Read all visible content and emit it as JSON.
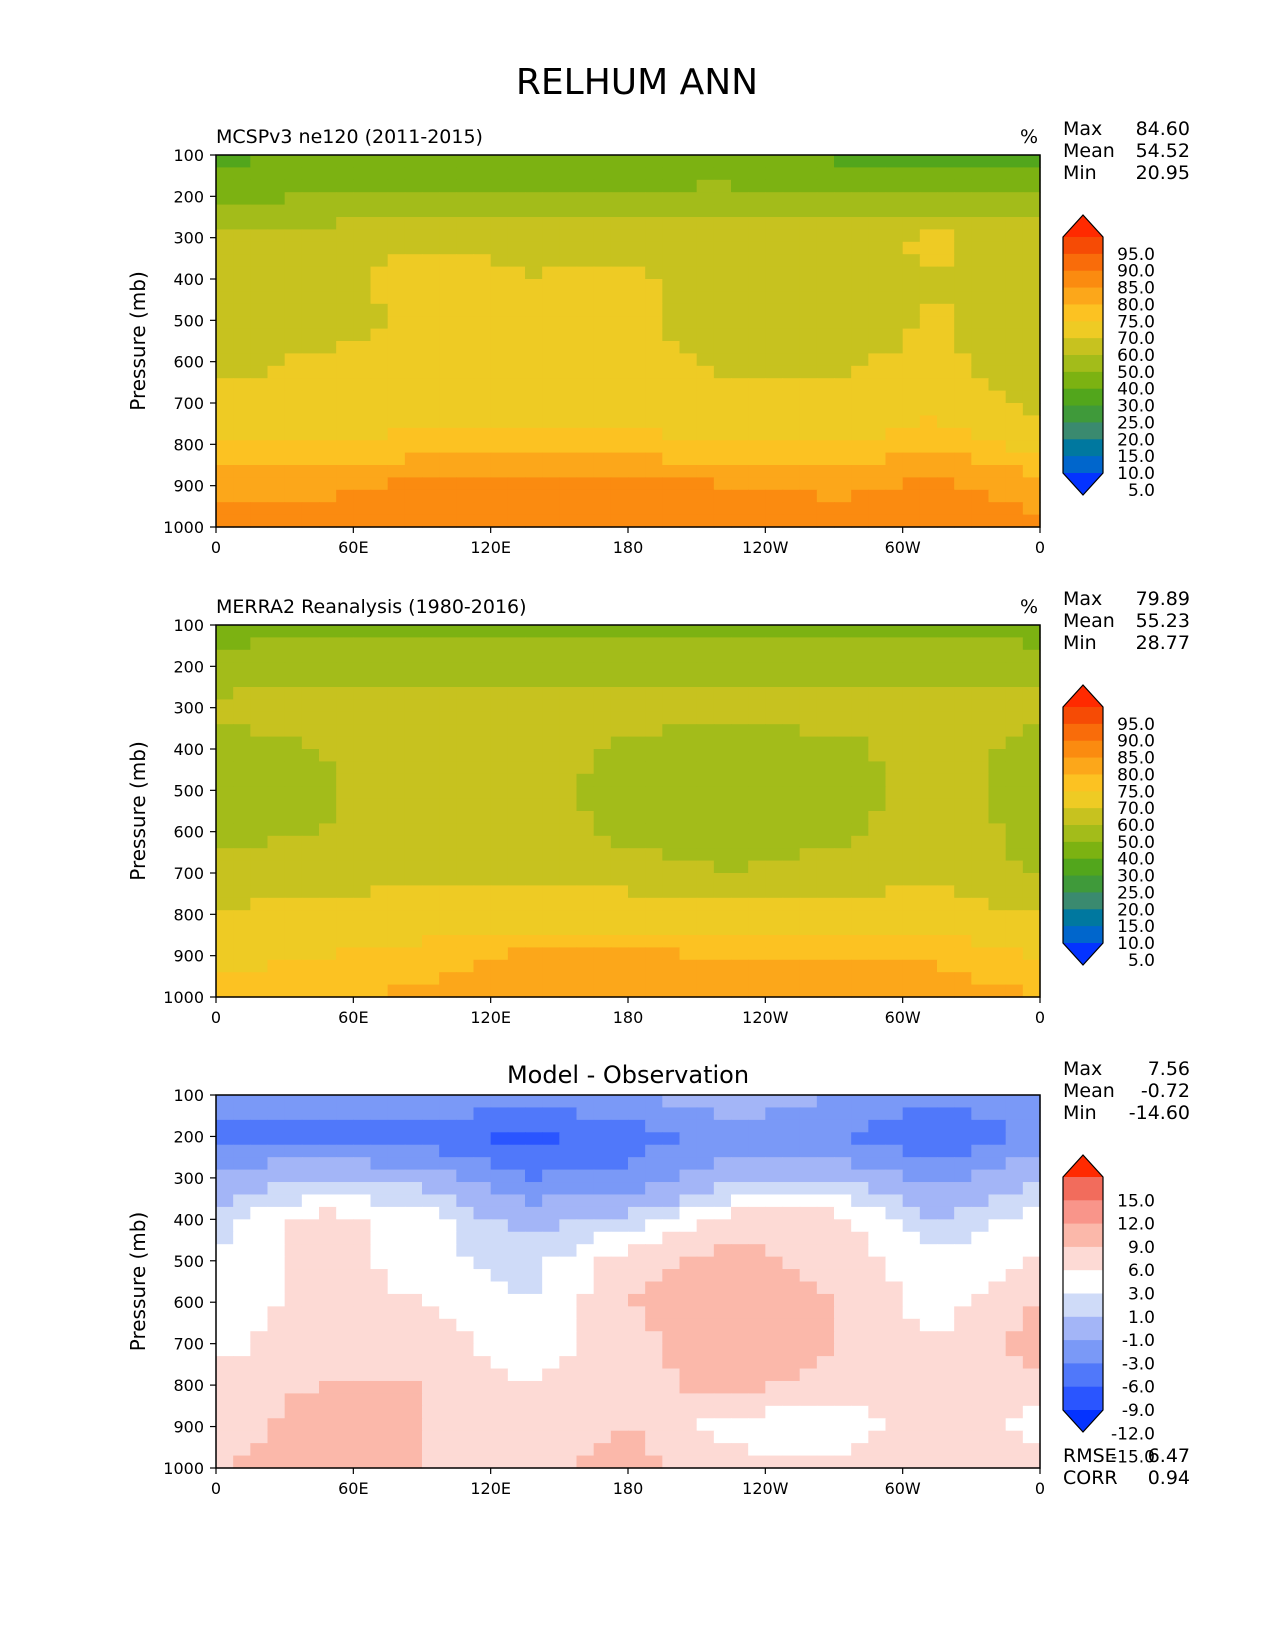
{
  "figure_title": "RELHUM ANN",
  "colors": {
    "field_colorbar": [
      "#0433ff",
      "#0066cc",
      "#00789f",
      "#3a8a6f",
      "#3f9a3a",
      "#52a61c",
      "#7cb212",
      "#a3bc1a",
      "#c7c21f",
      "#eecb24",
      "#fcc222",
      "#fca71a",
      "#fb8b10",
      "#f96c0a",
      "#f64b05",
      "#ff2a00"
    ],
    "diff_colorbar": [
      "#0433ff",
      "#2a55ff",
      "#5078fa",
      "#7a99f7",
      "#a3b5f7",
      "#cfdbf8",
      "#ffffff",
      "#fddad5",
      "#fbb8aa",
      "#f9958a",
      "#f26c5c",
      "#ff2a00"
    ]
  },
  "panels": [
    {
      "id": "model",
      "title": "MCSPv3 ne120 (2011-2015)",
      "units": "%",
      "stats": [
        {
          "label": "Max",
          "value": "84.60"
        },
        {
          "label": "Mean",
          "value": "54.52"
        },
        {
          "label": "Min",
          "value": "20.95"
        }
      ],
      "colorbar_ticks": [
        "95.0",
        "90.0",
        "85.0",
        "80.0",
        "75.0",
        "70.0",
        "60.0",
        "50.0",
        "40.0",
        "30.0",
        "25.0",
        "20.0",
        "15.0",
        "10.0",
        "5.0"
      ]
    },
    {
      "id": "obs",
      "title": "MERRA2 Reanalysis (1980-2016)",
      "units": "%",
      "stats": [
        {
          "label": "Max",
          "value": "79.89"
        },
        {
          "label": "Mean",
          "value": "55.23"
        },
        {
          "label": "Min",
          "value": "28.77"
        }
      ],
      "colorbar_ticks": [
        "95.0",
        "90.0",
        "85.0",
        "80.0",
        "75.0",
        "70.0",
        "60.0",
        "50.0",
        "40.0",
        "30.0",
        "25.0",
        "20.0",
        "15.0",
        "10.0",
        "5.0"
      ]
    },
    {
      "id": "diff",
      "title": "Model - Observation",
      "units": "",
      "stats": [
        {
          "label": "Max",
          "value": "7.56"
        },
        {
          "label": "Mean",
          "value": "-0.72"
        },
        {
          "label": "Min",
          "value": "-14.60"
        }
      ],
      "colorbar_ticks": [
        "15.0",
        "12.0",
        "9.0",
        "6.0",
        "3.0",
        "1.0",
        "-1.0",
        "-3.0",
        "-6.0",
        "-9.0",
        "-12.0",
        "-15.0"
      ],
      "metrics": [
        {
          "label": "RMSE",
          "value": "6.47"
        },
        {
          "label": "CORR",
          "value": "0.94"
        }
      ]
    }
  ],
  "chart_data": [
    {
      "type": "heatmap",
      "title": "MCSPv3 ne120 (2011-2015)",
      "units": "%",
      "ylabel": "Pressure (mb)",
      "xlabel": "",
      "x_ticks": [
        "0",
        "60E",
        "120E",
        "180",
        "120W",
        "60W",
        "0"
      ],
      "x": [
        0,
        60,
        120,
        180,
        240,
        300,
        360
      ],
      "y_ticks": [
        "100",
        "200",
        "300",
        "400",
        "500",
        "600",
        "700",
        "800",
        "900",
        "1000"
      ],
      "y": [
        100,
        200,
        300,
        400,
        500,
        600,
        700,
        800,
        900,
        1000
      ],
      "ylim": [
        1000,
        100
      ],
      "contour_levels": [
        5,
        10,
        15,
        20,
        25,
        30,
        40,
        50,
        60,
        70,
        75,
        80,
        85,
        90,
        95
      ],
      "z": [
        [
          28,
          30,
          32,
          30,
          32,
          35,
          28,
          25,
          24
        ],
        [
          38,
          40,
          42,
          41,
          42,
          42,
          40,
          41,
          40
        ],
        [
          52,
          55,
          56,
          58,
          56,
          57,
          58,
          62,
          56
        ],
        [
          50,
          55,
          67,
          60,
          63,
          52,
          50,
          60,
          50
        ],
        [
          50,
          52,
          63,
          66,
          63,
          51,
          50,
          62,
          50
        ],
        [
          56,
          62,
          66,
          67,
          66,
          58,
          58,
          64,
          50
        ],
        [
          63,
          64,
          66,
          67,
          66,
          62,
          62,
          68,
          56
        ],
        [
          72,
          71,
          72,
          73,
          72,
          71,
          70,
          74,
          68
        ],
        [
          78,
          79,
          81,
          81,
          82,
          80,
          79,
          81,
          77
        ],
        [
          82,
          82,
          83,
          84,
          84,
          83,
          82,
          83,
          82
        ]
      ]
    },
    {
      "type": "heatmap",
      "title": "MERRA2 Reanalysis (1980-2016)",
      "units": "%",
      "ylabel": "Pressure (mb)",
      "xlabel": "",
      "x_ticks": [
        "0",
        "60E",
        "120E",
        "180",
        "120W",
        "60W",
        "0"
      ],
      "x": [
        0,
        60,
        120,
        180,
        240,
        300,
        360
      ],
      "y_ticks": [
        "100",
        "200",
        "300",
        "400",
        "500",
        "600",
        "700",
        "800",
        "900",
        "1000"
      ],
      "y": [
        100,
        200,
        300,
        400,
        500,
        600,
        700,
        800,
        900,
        1000
      ],
      "ylim": [
        1000,
        100
      ],
      "contour_levels": [
        5,
        10,
        15,
        20,
        25,
        30,
        40,
        50,
        60,
        70,
        75,
        80,
        85,
        90,
        95
      ],
      "z": [
        [
          35,
          36,
          38,
          37,
          36,
          36,
          36,
          36,
          35
        ],
        [
          45,
          47,
          46,
          46,
          46,
          46,
          46,
          46,
          46
        ],
        [
          52,
          55,
          55,
          55,
          55,
          55,
          55,
          57,
          53
        ],
        [
          46,
          50,
          56,
          56,
          47,
          44,
          47,
          55,
          46
        ],
        [
          45,
          48,
          56,
          56,
          45,
          42,
          45,
          56,
          45
        ],
        [
          47,
          50,
          57,
          56,
          47,
          44,
          47,
          56,
          46
        ],
        [
          52,
          55,
          58,
          58,
          55,
          50,
          55,
          58,
          48
        ],
        [
          62,
          63,
          65,
          66,
          66,
          64,
          63,
          66,
          60
        ],
        [
          68,
          70,
          73,
          76,
          76,
          75,
          74,
          74,
          70
        ],
        [
          73,
          74,
          76,
          78,
          79,
          78,
          78,
          78,
          75
        ]
      ]
    },
    {
      "type": "heatmap",
      "title": "Model - Observation",
      "units": "",
      "ylabel": "Pressure (mb)",
      "xlabel": "",
      "x_ticks": [
        "0",
        "60E",
        "120E",
        "180",
        "120W",
        "60W",
        "0"
      ],
      "x": [
        0,
        60,
        120,
        180,
        240,
        300,
        360
      ],
      "y_ticks": [
        "100",
        "200",
        "300",
        "400",
        "500",
        "600",
        "700",
        "800",
        "900",
        "1000"
      ],
      "y": [
        100,
        200,
        300,
        400,
        500,
        600,
        700,
        800,
        900,
        1000
      ],
      "ylim": [
        1000,
        100
      ],
      "contour_levels": [
        -15,
        -12,
        -9,
        -6,
        -3,
        -1,
        1,
        3,
        6,
        9,
        12,
        15
      ],
      "z": [
        [
          -7,
          -6,
          -6,
          -7,
          -6,
          -4,
          -6,
          -8,
          -7
        ],
        [
          -10,
          -10,
          -11,
          -13,
          -11,
          -7,
          -9,
          -12,
          -8
        ],
        [
          -5,
          -3,
          -4,
          -9,
          -8,
          -4,
          -3,
          -7,
          -3
        ],
        [
          -2,
          2,
          0,
          -4,
          -2,
          2,
          2,
          -3,
          0
        ],
        [
          -1,
          2,
          0,
          -2,
          2,
          4,
          2,
          0,
          1
        ],
        [
          -1,
          2,
          1,
          -1,
          3,
          5,
          3,
          0,
          3
        ],
        [
          0,
          3,
          2,
          0,
          2,
          5,
          3,
          1,
          4
        ],
        [
          2,
          3,
          3,
          1,
          2,
          4,
          2,
          3,
          2
        ],
        [
          2,
          4,
          3,
          1,
          3,
          0,
          -1,
          3,
          0
        ],
        [
          3,
          4,
          3,
          2,
          4,
          2,
          2,
          3,
          2
        ]
      ]
    }
  ]
}
